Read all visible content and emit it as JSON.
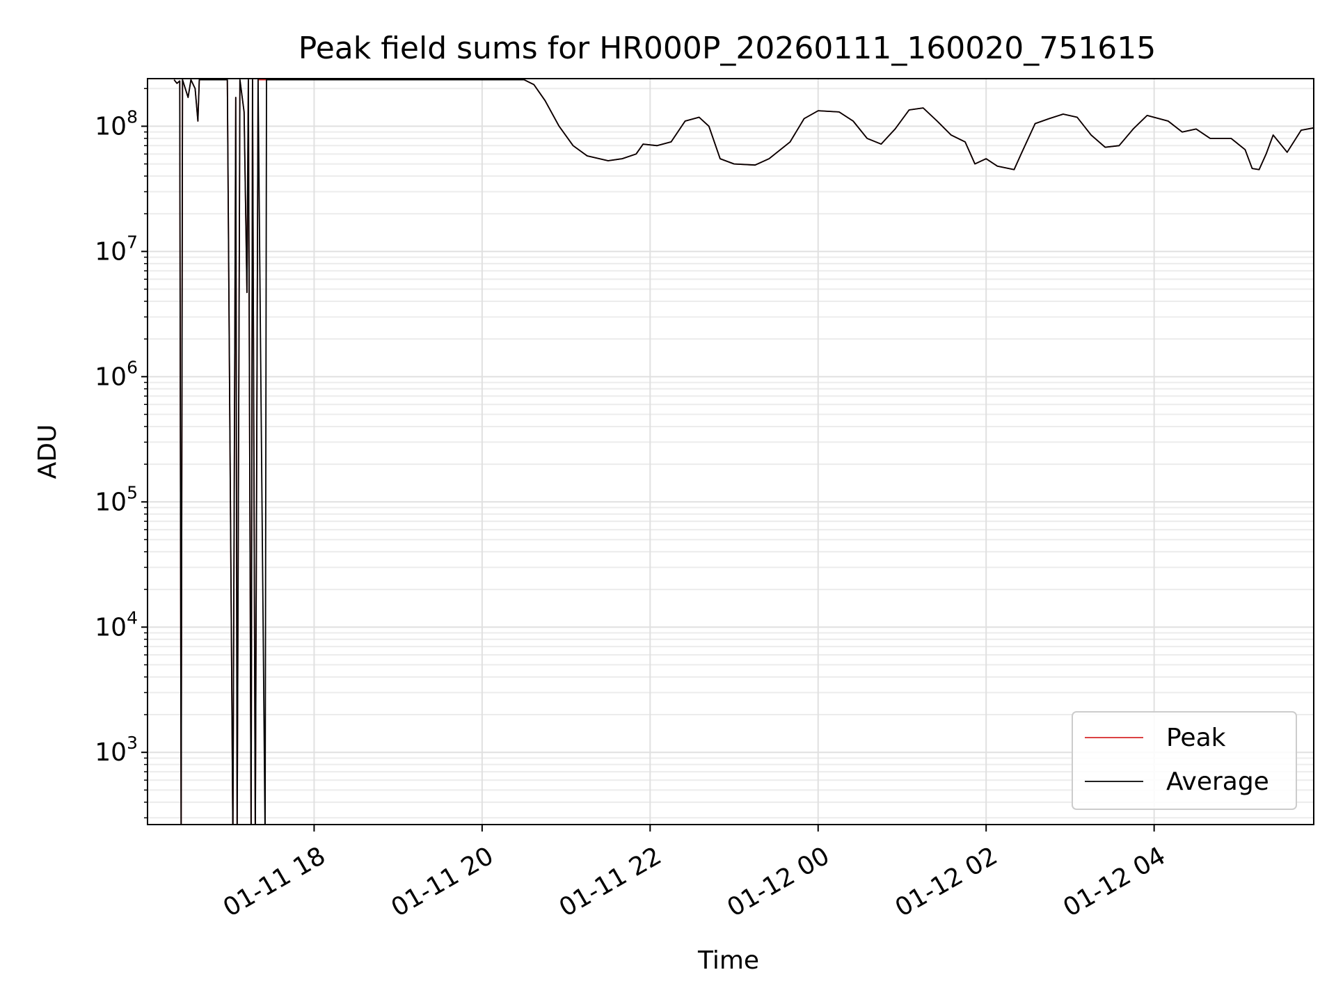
{
  "chart_data": {
    "type": "line",
    "title": "Peak field sums for HR000P_20260111_160020_751615",
    "xlabel": "Time",
    "ylabel": "ADU",
    "xscale": "time",
    "yscale": "log",
    "xlim": [
      "2026-01-11 16:01",
      "2026-01-12 05:54"
    ],
    "ylim": [
      265,
      240000000
    ],
    "grid": true,
    "legend_position": "bottom-right",
    "x_ticks": [
      {
        "value": "2026-01-11 18:00",
        "label": "01-11 18"
      },
      {
        "value": "2026-01-11 20:00",
        "label": "01-11 20"
      },
      {
        "value": "2026-01-11 22:00",
        "label": "01-11 22"
      },
      {
        "value": "2026-01-12 00:00",
        "label": "01-12 00"
      },
      {
        "value": "2026-01-12 02:00",
        "label": "01-12 02"
      },
      {
        "value": "2026-01-12 04:00",
        "label": "01-12 04"
      }
    ],
    "y_ticks": [
      {
        "base": "10",
        "exp": "3",
        "value": 1000
      },
      {
        "base": "10",
        "exp": "4",
        "value": 10000
      },
      {
        "base": "10",
        "exp": "5",
        "value": 100000
      },
      {
        "base": "10",
        "exp": "6",
        "value": 1000000
      },
      {
        "base": "10",
        "exp": "7",
        "value": 10000000
      },
      {
        "base": "10",
        "exp": "8",
        "value": 100000000
      }
    ],
    "series": [
      {
        "name": "Peak",
        "color": "#d62728",
        "points": [
          [
            "2026-01-11 16:20",
            235000000
          ],
          [
            "2026-01-11 16:22",
            220000000
          ],
          [
            "2026-01-11 16:24",
            230000000
          ],
          [
            "2026-01-11 16:25",
            200
          ],
          [
            "2026-01-11 16:26",
            235000000
          ],
          [
            "2026-01-11 16:30",
            170000000
          ],
          [
            "2026-01-11 16:32",
            235000000
          ],
          [
            "2026-01-11 16:35",
            200000000
          ],
          [
            "2026-01-11 16:37",
            110000000
          ],
          [
            "2026-01-11 16:38",
            235000000
          ],
          [
            "2026-01-11 16:58",
            235000000
          ],
          [
            "2026-01-11 17:02",
            200
          ],
          [
            "2026-01-11 17:04",
            170000000
          ],
          [
            "2026-01-11 17:05",
            200
          ],
          [
            "2026-01-11 17:07",
            235000000
          ],
          [
            "2026-01-11 17:10",
            130000000
          ],
          [
            "2026-01-11 17:12",
            4700000
          ],
          [
            "2026-01-11 17:13",
            235000000
          ],
          [
            "2026-01-11 17:15",
            200
          ],
          [
            "2026-01-11 17:16",
            235000000
          ],
          [
            "2026-01-11 17:18",
            200
          ],
          [
            "2026-01-11 17:20",
            235000000
          ],
          [
            "2026-01-11 20:30",
            235000000
          ],
          [
            "2026-01-11 20:37",
            215000000
          ],
          [
            "2026-01-11 20:45",
            160000000
          ],
          [
            "2026-01-11 20:55",
            100000000
          ],
          [
            "2026-01-11 21:05",
            70000000
          ],
          [
            "2026-01-11 21:15",
            58000000
          ],
          [
            "2026-01-11 21:30",
            53000000
          ],
          [
            "2026-01-11 21:40",
            55000000
          ],
          [
            "2026-01-11 21:50",
            60000000
          ],
          [
            "2026-01-11 21:55",
            72000000
          ],
          [
            "2026-01-11 22:05",
            70000000
          ],
          [
            "2026-01-11 22:15",
            75000000
          ],
          [
            "2026-01-11 22:25",
            110000000
          ],
          [
            "2026-01-11 22:35",
            118000000
          ],
          [
            "2026-01-11 22:42",
            100000000
          ],
          [
            "2026-01-11 22:50",
            55000000
          ],
          [
            "2026-01-11 23:00",
            50000000
          ],
          [
            "2026-01-11 23:15",
            49000000
          ],
          [
            "2026-01-11 23:25",
            55000000
          ],
          [
            "2026-01-11 23:40",
            75000000
          ],
          [
            "2026-01-11 23:50",
            115000000
          ],
          [
            "2026-01-12 00:00",
            133000000
          ],
          [
            "2026-01-12 00:15",
            130000000
          ],
          [
            "2026-01-12 00:25",
            110000000
          ],
          [
            "2026-01-12 00:35",
            80000000
          ],
          [
            "2026-01-12 00:45",
            72000000
          ],
          [
            "2026-01-12 00:55",
            95000000
          ],
          [
            "2026-01-12 01:05",
            135000000
          ],
          [
            "2026-01-12 01:15",
            140000000
          ],
          [
            "2026-01-12 01:25",
            110000000
          ],
          [
            "2026-01-12 01:35",
            85000000
          ],
          [
            "2026-01-12 01:45",
            75000000
          ],
          [
            "2026-01-12 01:52",
            50000000
          ],
          [
            "2026-01-12 02:00",
            55000000
          ],
          [
            "2026-01-12 02:08",
            48000000
          ],
          [
            "2026-01-12 02:20",
            45000000
          ],
          [
            "2026-01-12 02:25",
            60000000
          ],
          [
            "2026-01-12 02:35",
            105000000
          ],
          [
            "2026-01-12 02:45",
            115000000
          ],
          [
            "2026-01-12 02:55",
            125000000
          ],
          [
            "2026-01-12 03:05",
            118000000
          ],
          [
            "2026-01-12 03:15",
            85000000
          ],
          [
            "2026-01-12 03:25",
            68000000
          ],
          [
            "2026-01-12 03:35",
            70000000
          ],
          [
            "2026-01-12 03:45",
            95000000
          ],
          [
            "2026-01-12 03:55",
            122000000
          ],
          [
            "2026-01-12 04:10",
            110000000
          ],
          [
            "2026-01-12 04:20",
            90000000
          ],
          [
            "2026-01-12 04:30",
            95000000
          ],
          [
            "2026-01-12 04:40",
            80000000
          ],
          [
            "2026-01-12 04:55",
            80000000
          ],
          [
            "2026-01-12 05:05",
            65000000
          ],
          [
            "2026-01-12 05:10",
            46000000
          ],
          [
            "2026-01-12 05:15",
            45000000
          ],
          [
            "2026-01-12 05:20",
            60000000
          ],
          [
            "2026-01-12 05:25",
            85000000
          ],
          [
            "2026-01-12 05:35",
            62000000
          ],
          [
            "2026-01-12 05:45",
            93000000
          ],
          [
            "2026-01-12 05:54",
            97000000
          ]
        ]
      },
      {
        "name": "Average",
        "color": "#000000",
        "points": [
          [
            "2026-01-11 16:20",
            235000000
          ],
          [
            "2026-01-11 16:22",
            220000000
          ],
          [
            "2026-01-11 16:24",
            230000000
          ],
          [
            "2026-01-11 16:25",
            200
          ],
          [
            "2026-01-11 16:26",
            235000000
          ],
          [
            "2026-01-11 16:30",
            170000000
          ],
          [
            "2026-01-11 16:32",
            235000000
          ],
          [
            "2026-01-11 16:35",
            200000000
          ],
          [
            "2026-01-11 16:37",
            110000000
          ],
          [
            "2026-01-11 16:38",
            235000000
          ],
          [
            "2026-01-11 16:58",
            235000000
          ],
          [
            "2026-01-11 17:02",
            200
          ],
          [
            "2026-01-11 17:04",
            170000000
          ],
          [
            "2026-01-11 17:05",
            200
          ],
          [
            "2026-01-11 17:07",
            235000000
          ],
          [
            "2026-01-11 17:10",
            130000000
          ],
          [
            "2026-01-11 17:12",
            4700000
          ],
          [
            "2026-01-11 17:13",
            235000000
          ],
          [
            "2026-01-11 17:15",
            200
          ],
          [
            "2026-01-11 17:16",
            235000000
          ],
          [
            "2026-01-11 17:18",
            200
          ],
          [
            "2026-01-11 17:20",
            235000000
          ],
          [
            "2026-01-11 17:25",
            200
          ],
          [
            "2026-01-11 17:26",
            235000000
          ],
          [
            "2026-01-11 20:30",
            235000000
          ],
          [
            "2026-01-11 20:37",
            215000000
          ],
          [
            "2026-01-11 20:45",
            160000000
          ],
          [
            "2026-01-11 20:55",
            100000000
          ],
          [
            "2026-01-11 21:05",
            70000000
          ],
          [
            "2026-01-11 21:15",
            58000000
          ],
          [
            "2026-01-11 21:30",
            53000000
          ],
          [
            "2026-01-11 21:40",
            55000000
          ],
          [
            "2026-01-11 21:50",
            60000000
          ],
          [
            "2026-01-11 21:55",
            72000000
          ],
          [
            "2026-01-11 22:05",
            70000000
          ],
          [
            "2026-01-11 22:15",
            75000000
          ],
          [
            "2026-01-11 22:25",
            110000000
          ],
          [
            "2026-01-11 22:35",
            118000000
          ],
          [
            "2026-01-11 22:42",
            100000000
          ],
          [
            "2026-01-11 22:50",
            55000000
          ],
          [
            "2026-01-11 23:00",
            50000000
          ],
          [
            "2026-01-11 23:15",
            49000000
          ],
          [
            "2026-01-11 23:25",
            55000000
          ],
          [
            "2026-01-11 23:40",
            75000000
          ],
          [
            "2026-01-11 23:50",
            115000000
          ],
          [
            "2026-01-12 00:00",
            133000000
          ],
          [
            "2026-01-12 00:15",
            130000000
          ],
          [
            "2026-01-12 00:25",
            110000000
          ],
          [
            "2026-01-12 00:35",
            80000000
          ],
          [
            "2026-01-12 00:45",
            72000000
          ],
          [
            "2026-01-12 00:55",
            95000000
          ],
          [
            "2026-01-12 01:05",
            135000000
          ],
          [
            "2026-01-12 01:15",
            140000000
          ],
          [
            "2026-01-12 01:25",
            110000000
          ],
          [
            "2026-01-12 01:35",
            85000000
          ],
          [
            "2026-01-12 01:45",
            75000000
          ],
          [
            "2026-01-12 01:52",
            50000000
          ],
          [
            "2026-01-12 02:00",
            55000000
          ],
          [
            "2026-01-12 02:08",
            48000000
          ],
          [
            "2026-01-12 02:20",
            45000000
          ],
          [
            "2026-01-12 02:25",
            60000000
          ],
          [
            "2026-01-12 02:35",
            105000000
          ],
          [
            "2026-01-12 02:45",
            115000000
          ],
          [
            "2026-01-12 02:55",
            125000000
          ],
          [
            "2026-01-12 03:05",
            118000000
          ],
          [
            "2026-01-12 03:15",
            85000000
          ],
          [
            "2026-01-12 03:25",
            68000000
          ],
          [
            "2026-01-12 03:35",
            70000000
          ],
          [
            "2026-01-12 03:45",
            95000000
          ],
          [
            "2026-01-12 03:55",
            122000000
          ],
          [
            "2026-01-12 04:10",
            110000000
          ],
          [
            "2026-01-12 04:20",
            90000000
          ],
          [
            "2026-01-12 04:30",
            95000000
          ],
          [
            "2026-01-12 04:40",
            80000000
          ],
          [
            "2026-01-12 04:55",
            80000000
          ],
          [
            "2026-01-12 05:05",
            65000000
          ],
          [
            "2026-01-12 05:10",
            46000000
          ],
          [
            "2026-01-12 05:15",
            45000000
          ],
          [
            "2026-01-12 05:20",
            60000000
          ],
          [
            "2026-01-12 05:25",
            85000000
          ],
          [
            "2026-01-12 05:35",
            62000000
          ],
          [
            "2026-01-12 05:45",
            93000000
          ],
          [
            "2026-01-12 05:54",
            97000000
          ]
        ]
      }
    ]
  }
}
